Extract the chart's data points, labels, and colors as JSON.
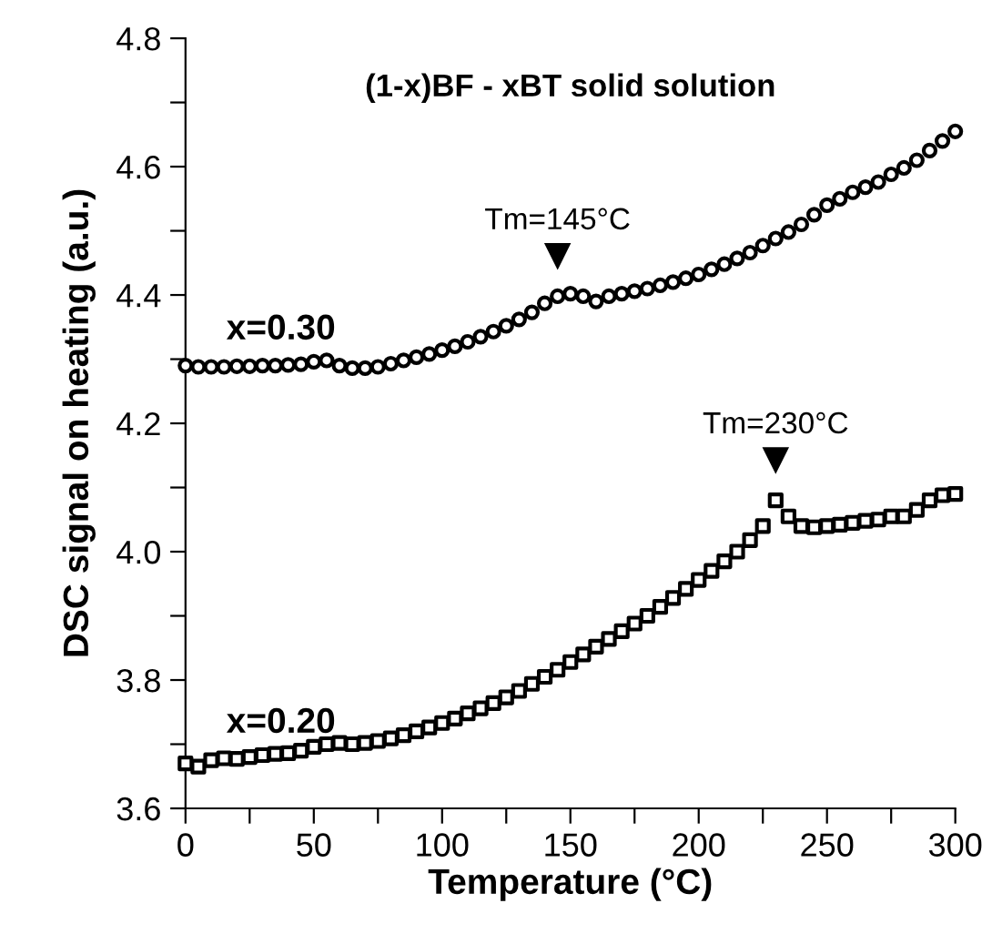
{
  "chart_data": {
    "type": "scatter",
    "title": "(1-x)BF - xBT solid solution",
    "xlabel": "Temperature (°C)",
    "ylabel": "DSC signal on heating (a.u.)",
    "x": [
      0,
      5,
      10,
      15,
      20,
      25,
      30,
      35,
      40,
      45,
      50,
      55,
      60,
      65,
      70,
      75,
      80,
      85,
      90,
      95,
      100,
      105,
      110,
      115,
      120,
      125,
      130,
      135,
      140,
      145,
      150,
      155,
      160,
      165,
      170,
      175,
      180,
      185,
      190,
      195,
      200,
      205,
      210,
      215,
      220,
      225,
      230,
      235,
      240,
      245,
      250,
      255,
      260,
      265,
      270,
      275,
      280,
      285,
      290,
      295,
      300
    ],
    "series": [
      {
        "name": "x=0.30",
        "color": "#000000",
        "marker": "circle",
        "values": [
          4.29,
          4.288,
          4.288,
          4.288,
          4.289,
          4.289,
          4.29,
          4.29,
          4.291,
          4.292,
          4.296,
          4.298,
          4.29,
          4.286,
          4.286,
          4.288,
          4.293,
          4.298,
          4.303,
          4.308,
          4.314,
          4.32,
          4.327,
          4.335,
          4.343,
          4.352,
          4.362,
          4.373,
          4.387,
          4.398,
          4.402,
          4.398,
          4.39,
          4.398,
          4.402,
          4.406,
          4.41,
          4.415,
          4.42,
          4.426,
          4.432,
          4.44,
          4.448,
          4.457,
          4.466,
          4.477,
          4.488,
          4.498,
          4.51,
          4.525,
          4.54,
          4.55,
          4.56,
          4.568,
          4.576,
          4.588,
          4.598,
          4.61,
          4.625,
          4.64,
          4.655
        ]
      },
      {
        "name": "x=0.20",
        "color": "#000000",
        "marker": "square",
        "values": [
          3.67,
          3.665,
          3.675,
          3.678,
          3.677,
          3.68,
          3.683,
          3.685,
          3.686,
          3.69,
          3.696,
          3.7,
          3.702,
          3.7,
          3.702,
          3.705,
          3.709,
          3.714,
          3.72,
          3.726,
          3.733,
          3.74,
          3.748,
          3.756,
          3.764,
          3.773,
          3.783,
          3.794,
          3.805,
          3.816,
          3.828,
          3.84,
          3.852,
          3.864,
          3.876,
          3.888,
          3.9,
          3.914,
          3.928,
          3.942,
          3.956,
          3.97,
          3.985,
          4.0,
          4.018,
          4.04,
          4.08,
          4.055,
          4.04,
          4.038,
          4.04,
          4.042,
          4.045,
          4.048,
          4.05,
          4.055,
          4.055,
          4.065,
          4.08,
          4.088,
          4.09
        ]
      }
    ],
    "annotations": [
      {
        "text": "Tm=145°C",
        "x": 145,
        "y": 4.398
      },
      {
        "text": "Tm=230°C",
        "x": 230,
        "y": 4.08
      }
    ],
    "xlim": [
      0,
      300
    ],
    "xticks": [
      0,
      {
        "value": 25,
        "label": null
      },
      50,
      {
        "value": 75,
        "label": null
      },
      100,
      {
        "value": 125,
        "label": null
      },
      150,
      {
        "value": 175,
        "label": null
      },
      200,
      {
        "value": 225,
        "label": null
      },
      250,
      {
        "value": 275,
        "label": null
      },
      300
    ],
    "ylim": [
      3.6,
      4.8
    ],
    "yticks": [
      3.6,
      {
        "value": 3.7,
        "label": null
      },
      3.8,
      {
        "value": 3.9,
        "label": null
      },
      {
        "value": 4.0,
        "label": "4.0"
      },
      {
        "value": 4.1,
        "label": null
      },
      4.2,
      {
        "value": 4.3,
        "label": null
      },
      4.4,
      {
        "value": 4.5,
        "label": null
      },
      4.6,
      {
        "value": 4.7,
        "label": null
      },
      4.8
    ],
    "grid": false,
    "legend": false
  }
}
